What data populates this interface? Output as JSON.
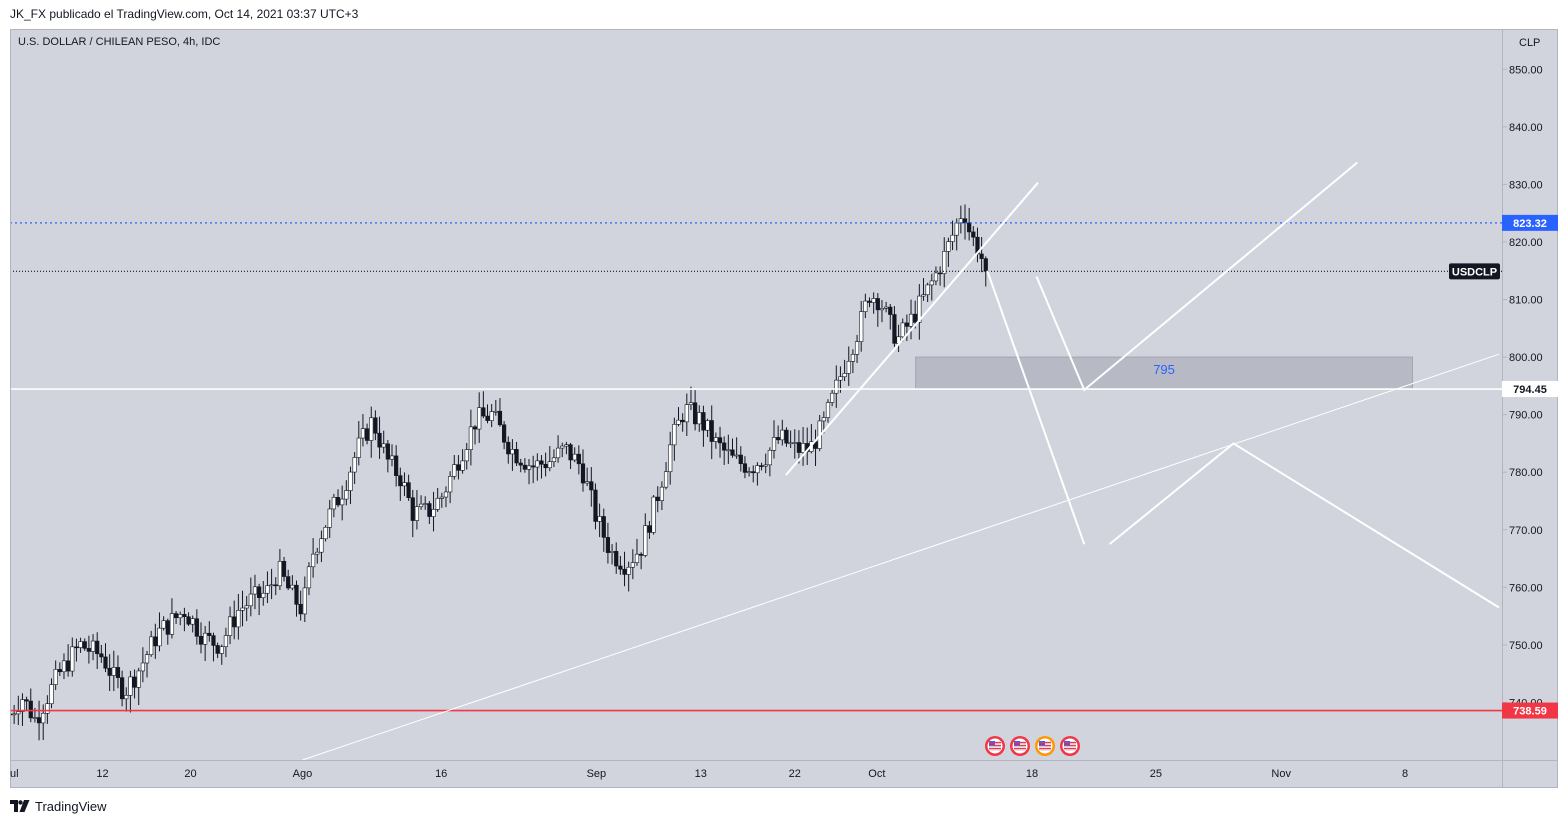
{
  "header": {
    "publisher": "JK_FX publicado el TradingView.com, Oct 14, 2021 03:37 UTC+3"
  },
  "footer": {
    "brand": "TradingView",
    "logo_icon": "tradingview-logo-icon"
  },
  "chart_data": {
    "type": "candlestick",
    "title": "U.S. DOLLAR / CHILEAN PESO, 4h, IDC",
    "currency_label": "CLP",
    "symbol_tag": "USDCLP",
    "ylim": [
      730,
      857
    ],
    "y_ticks": [
      "850.00",
      "840.00",
      "830.00",
      "820.00",
      "810.00",
      "800.00",
      "790.00",
      "780.00",
      "770.00",
      "760.00",
      "750.00",
      "740.00"
    ],
    "x_ticks": [
      {
        "label": "ul",
        "pos": 0.0
      },
      {
        "label": "12",
        "pos": 0.062
      },
      {
        "label": "20",
        "pos": 0.121
      },
      {
        "label": "Ago",
        "pos": 0.196
      },
      {
        "label": "16",
        "pos": 0.289
      },
      {
        "label": "Sep",
        "pos": 0.393
      },
      {
        "label": "13",
        "pos": 0.463
      },
      {
        "label": "22",
        "pos": 0.526
      },
      {
        "label": "Oct",
        "pos": 0.581
      },
      {
        "label": "18",
        "pos": 0.685
      },
      {
        "label": "25",
        "pos": 0.768
      },
      {
        "label": "Nov",
        "pos": 0.852
      },
      {
        "label": "8",
        "pos": 0.935
      }
    ],
    "price_lines": [
      {
        "name": "current-price-line",
        "value": 823.32,
        "label": "823.32",
        "color": "#2962ff",
        "style": "dotted",
        "label_bg": "#2962ff",
        "label_color": "#ffffff"
      },
      {
        "name": "last-close-line",
        "value": 814.9,
        "label": "",
        "color": "#131722",
        "style": "dotted"
      },
      {
        "name": "resistance-line",
        "value": 794.45,
        "label": "794.45",
        "color": "#ffffff",
        "style": "solid",
        "label_bg": "#ffffff",
        "label_color": "#131722"
      },
      {
        "name": "support-line",
        "value": 738.59,
        "label": "738.59",
        "color": "#f23645",
        "style": "solid",
        "label_bg": "#f23645",
        "label_color": "#ffffff"
      }
    ],
    "zone": {
      "label": "795",
      "low": 794.45,
      "high": 800.0,
      "start": 0.607,
      "end": 0.94,
      "label_color": "#2962ff"
    },
    "trend_lines": [
      {
        "name": "long-trendline",
        "points": [
          [
            0.196,
            730.0
          ],
          [
            0.998,
            800.5
          ]
        ],
        "width": 1
      },
      {
        "name": "short-trendline",
        "points": [
          [
            0.52,
            779.5
          ],
          [
            0.689,
            830.3
          ]
        ],
        "width": 2
      }
    ],
    "projection_lines": [
      {
        "name": "projection-down-left",
        "points": [
          [
            0.655,
            815.0
          ],
          [
            0.72,
            767.5
          ]
        ]
      },
      {
        "name": "projection-right-a",
        "points": [
          [
            0.688,
            814.0
          ],
          [
            0.72,
            794.3
          ],
          [
            0.903,
            833.8
          ]
        ]
      },
      {
        "name": "projection-right-b",
        "points": [
          [
            0.737,
            767.5
          ],
          [
            0.82,
            785.0
          ],
          [
            0.998,
            756.5
          ]
        ]
      }
    ],
    "colors": {
      "background": "#d1d4dc",
      "up_candle": "#ffffff",
      "down_candle": "#131722",
      "wick": "#131722",
      "axis_text": "#131722"
    },
    "events": {
      "count": 4,
      "icon": "us-flag-icon"
    }
  }
}
